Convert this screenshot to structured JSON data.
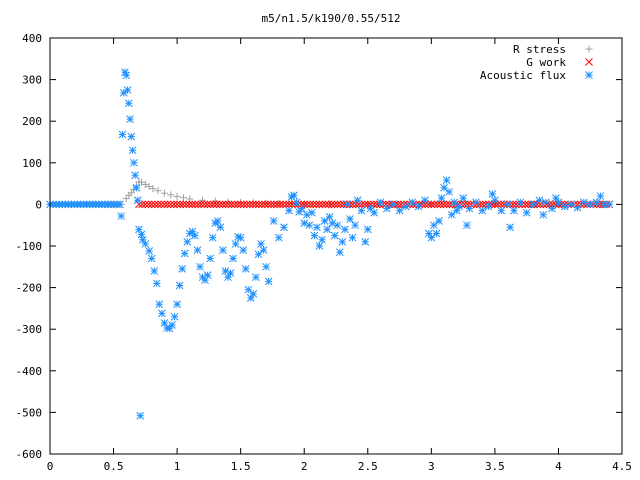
{
  "chart_data": {
    "type": "scatter",
    "title": "m5/n1.5/k190/0.55/512",
    "xlabel": "",
    "ylabel": "",
    "xlim": [
      0,
      4.5
    ],
    "ylim": [
      -600,
      400
    ],
    "xticks": [
      0,
      0.5,
      1,
      1.5,
      2,
      2.5,
      3,
      3.5,
      4,
      4.5
    ],
    "xtick_labels": [
      "0",
      "0.5",
      "1",
      "1.5",
      "2",
      "2.5",
      "3",
      "3.5",
      "4",
      "4.5"
    ],
    "yticks": [
      -600,
      -500,
      -400,
      -300,
      -200,
      -100,
      0,
      100,
      200,
      300,
      400
    ],
    "ytick_labels": [
      "-600",
      "-500",
      "-400",
      "-300",
      "-200",
      "-100",
      "0",
      "100",
      "200",
      "300",
      "400"
    ],
    "grid": false,
    "legend_position": "top-right",
    "series": [
      {
        "name": "R stress",
        "marker": "plus",
        "color": "#a0a0a0",
        "points": [
          [
            0.0,
            0.0
          ],
          [
            0.56,
            0.0
          ],
          [
            0.6,
            14
          ],
          [
            0.62,
            22
          ],
          [
            0.64,
            28
          ],
          [
            0.66,
            36
          ],
          [
            0.68,
            45
          ],
          [
            0.7,
            54
          ],
          [
            0.72,
            53
          ],
          [
            0.75,
            48
          ],
          [
            0.78,
            43
          ],
          [
            0.81,
            38
          ],
          [
            0.85,
            33
          ],
          [
            0.9,
            27
          ],
          [
            0.95,
            23
          ],
          [
            1.0,
            19
          ],
          [
            1.05,
            16
          ],
          [
            1.1,
            13
          ],
          [
            1.2,
            10
          ],
          [
            1.3,
            8
          ],
          [
            1.4,
            6
          ],
          [
            1.5,
            5
          ],
          [
            1.6,
            4
          ],
          [
            1.7,
            3
          ],
          [
            1.8,
            2
          ],
          [
            1.9,
            2
          ],
          [
            2.0,
            1
          ],
          [
            2.2,
            1
          ],
          [
            2.5,
            0.5
          ],
          [
            3.0,
            0.3
          ],
          [
            3.5,
            0.2
          ],
          [
            4.0,
            0.1
          ],
          [
            4.4,
            0.0
          ]
        ]
      },
      {
        "name": "G work",
        "marker": "cross",
        "color": "#ff0000",
        "points": [
          [
            0.7,
            0
          ],
          [
            1.0,
            0
          ],
          [
            1.5,
            0
          ],
          [
            2.0,
            0
          ],
          [
            2.5,
            0
          ],
          [
            3.0,
            0
          ],
          [
            3.5,
            0
          ],
          [
            4.0,
            0
          ],
          [
            4.4,
            0
          ]
        ]
      },
      {
        "name": "Acoustic flux",
        "marker": "star",
        "color": "#1e90ff",
        "points": [
          [
            0.0,
            0
          ],
          [
            0.55,
            0
          ],
          [
            0.56,
            -28
          ],
          [
            0.57,
            168
          ],
          [
            0.58,
            268
          ],
          [
            0.59,
            318
          ],
          [
            0.6,
            310
          ],
          [
            0.61,
            275
          ],
          [
            0.62,
            243
          ],
          [
            0.63,
            205
          ],
          [
            0.64,
            163
          ],
          [
            0.65,
            130
          ],
          [
            0.66,
            100
          ],
          [
            0.67,
            70
          ],
          [
            0.68,
            40
          ],
          [
            0.69,
            10
          ],
          [
            0.7,
            -60
          ],
          [
            0.71,
            -508
          ],
          [
            0.72,
            -72
          ],
          [
            0.73,
            -85
          ],
          [
            0.75,
            -95
          ],
          [
            0.78,
            -112
          ],
          [
            0.8,
            -130
          ],
          [
            0.82,
            -160
          ],
          [
            0.84,
            -190
          ],
          [
            0.86,
            -240
          ],
          [
            0.88,
            -262
          ],
          [
            0.9,
            -285
          ],
          [
            0.92,
            -297
          ],
          [
            0.94,
            -298
          ],
          [
            0.96,
            -290
          ],
          [
            0.98,
            -270
          ],
          [
            1.0,
            -240
          ],
          [
            1.02,
            -195
          ],
          [
            1.04,
            -155
          ],
          [
            1.06,
            -118
          ],
          [
            1.08,
            -90
          ],
          [
            1.1,
            -70
          ],
          [
            1.12,
            -65
          ],
          [
            1.14,
            -75
          ],
          [
            1.16,
            -110
          ],
          [
            1.18,
            -150
          ],
          [
            1.2,
            -175
          ],
          [
            1.22,
            -182
          ],
          [
            1.24,
            -170
          ],
          [
            1.26,
            -130
          ],
          [
            1.28,
            -80
          ],
          [
            1.3,
            -45
          ],
          [
            1.32,
            -40
          ],
          [
            1.34,
            -55
          ],
          [
            1.36,
            -110
          ],
          [
            1.38,
            -160
          ],
          [
            1.4,
            -175
          ],
          [
            1.42,
            -165
          ],
          [
            1.44,
            -130
          ],
          [
            1.46,
            -95
          ],
          [
            1.48,
            -78
          ],
          [
            1.5,
            -80
          ],
          [
            1.52,
            -110
          ],
          [
            1.54,
            -155
          ],
          [
            1.56,
            -205
          ],
          [
            1.58,
            -225
          ],
          [
            1.6,
            -215
          ],
          [
            1.62,
            -175
          ],
          [
            1.64,
            -120
          ],
          [
            1.66,
            -95
          ],
          [
            1.68,
            -110
          ],
          [
            1.7,
            -150
          ],
          [
            1.72,
            -185
          ],
          [
            1.76,
            -40
          ],
          [
            1.8,
            -80
          ],
          [
            1.84,
            -55
          ],
          [
            1.88,
            -15
          ],
          [
            1.9,
            18
          ],
          [
            1.92,
            22
          ],
          [
            1.94,
            5
          ],
          [
            1.96,
            -18
          ],
          [
            1.98,
            -10
          ],
          [
            2.0,
            -45
          ],
          [
            2.02,
            -25
          ],
          [
            2.04,
            -50
          ],
          [
            2.06,
            -20
          ],
          [
            2.08,
            -75
          ],
          [
            2.1,
            -55
          ],
          [
            2.12,
            -100
          ],
          [
            2.14,
            -85
          ],
          [
            2.16,
            -40
          ],
          [
            2.18,
            -60
          ],
          [
            2.2,
            -30
          ],
          [
            2.22,
            -45
          ],
          [
            2.24,
            -75
          ],
          [
            2.26,
            -50
          ],
          [
            2.28,
            -115
          ],
          [
            2.3,
            -90
          ],
          [
            2.32,
            -60
          ],
          [
            2.34,
            0
          ],
          [
            2.36,
            -35
          ],
          [
            2.38,
            -80
          ],
          [
            2.4,
            -50
          ],
          [
            2.42,
            10
          ],
          [
            2.45,
            -15
          ],
          [
            2.48,
            -90
          ],
          [
            2.5,
            -60
          ],
          [
            2.52,
            -10
          ],
          [
            2.55,
            -20
          ],
          [
            2.6,
            5
          ],
          [
            2.65,
            -10
          ],
          [
            2.7,
            0
          ],
          [
            2.75,
            -15
          ],
          [
            2.8,
            -5
          ],
          [
            2.85,
            5
          ],
          [
            2.9,
            -5
          ],
          [
            2.95,
            10
          ],
          [
            2.98,
            -70
          ],
          [
            3.0,
            -80
          ],
          [
            3.02,
            -50
          ],
          [
            3.04,
            -70
          ],
          [
            3.06,
            -40
          ],
          [
            3.08,
            15
          ],
          [
            3.1,
            40
          ],
          [
            3.12,
            58
          ],
          [
            3.14,
            30
          ],
          [
            3.16,
            -25
          ],
          [
            3.18,
            5
          ],
          [
            3.2,
            -15
          ],
          [
            3.22,
            -5
          ],
          [
            3.25,
            15
          ],
          [
            3.28,
            -50
          ],
          [
            3.3,
            -10
          ],
          [
            3.35,
            5
          ],
          [
            3.4,
            -15
          ],
          [
            3.45,
            -5
          ],
          [
            3.48,
            25
          ],
          [
            3.5,
            10
          ],
          [
            3.55,
            -15
          ],
          [
            3.6,
            0
          ],
          [
            3.62,
            -55
          ],
          [
            3.65,
            -15
          ],
          [
            3.7,
            5
          ],
          [
            3.75,
            -20
          ],
          [
            3.8,
            0
          ],
          [
            3.85,
            10
          ],
          [
            3.88,
            -25
          ],
          [
            3.9,
            5
          ],
          [
            3.95,
            -10
          ],
          [
            3.98,
            15
          ],
          [
            4.0,
            5
          ],
          [
            4.05,
            -5
          ],
          [
            4.1,
            0
          ],
          [
            4.15,
            -8
          ],
          [
            4.2,
            5
          ],
          [
            4.25,
            0
          ],
          [
            4.3,
            5
          ],
          [
            4.33,
            20
          ],
          [
            4.36,
            0
          ],
          [
            4.4,
            0
          ]
        ]
      }
    ]
  }
}
